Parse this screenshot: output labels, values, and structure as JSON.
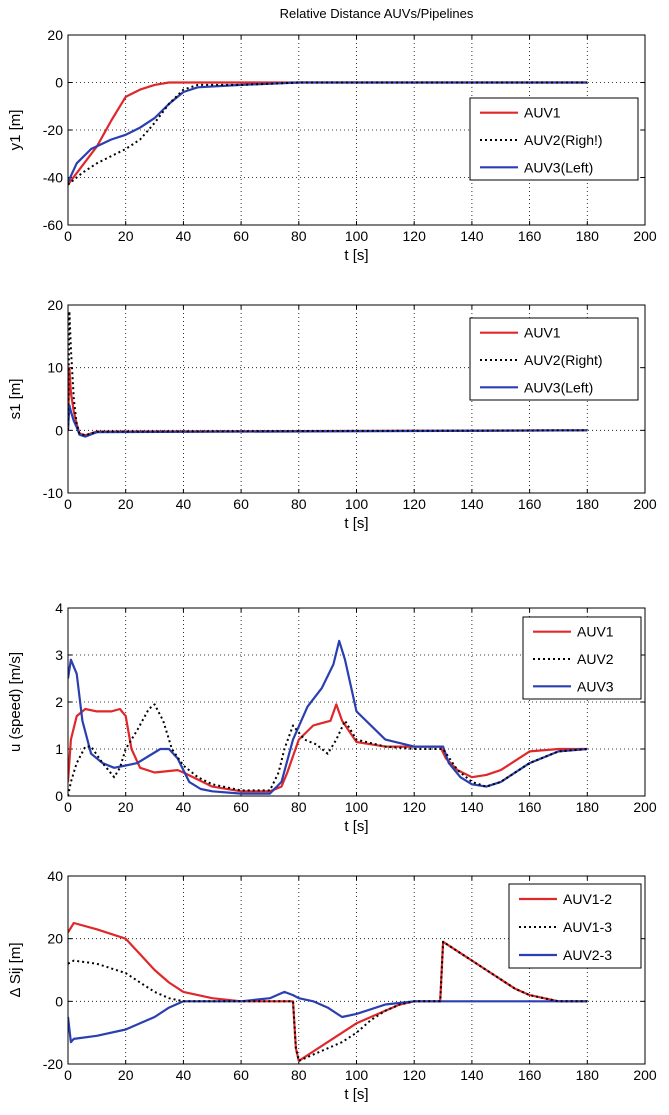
{
  "colors": {
    "red": "#e0282a",
    "black": "#000000",
    "blue": "#2a3fb0",
    "grid": "#000000"
  },
  "chart_data": [
    {
      "type": "line",
      "title": "Relative Distance AUVs/Pipelines",
      "xlabel": "t [s]",
      "ylabel": "y1 [m]",
      "xlim": [
        0,
        200
      ],
      "ylim": [
        -60,
        20
      ],
      "xticks": [
        "0",
        "20",
        "40",
        "60",
        "80",
        "100",
        "120",
        "140",
        "160",
        "180",
        "200"
      ],
      "yticks": [
        "-60",
        "-40",
        "-20",
        "0",
        "20"
      ],
      "grid": true,
      "legend_position": "right",
      "series": [
        {
          "name": "AUV1",
          "style": "red-solid",
          "x": [
            0,
            5,
            10,
            15,
            20,
            25,
            30,
            35,
            40,
            60,
            80,
            180
          ],
          "y": [
            -43,
            -35,
            -27,
            -16,
            -6,
            -3,
            -1,
            0,
            0,
            0,
            0,
            0
          ]
        },
        {
          "name": "AUV2(Righ!)",
          "style": "black-dotted",
          "x": [
            0,
            5,
            10,
            15,
            20,
            25,
            30,
            35,
            40,
            45,
            60,
            80,
            180
          ],
          "y": [
            -43,
            -38,
            -34,
            -31,
            -28,
            -24,
            -17,
            -9,
            -3,
            -1,
            -1,
            0,
            0
          ]
        },
        {
          "name": "AUV3(Left)",
          "style": "blue-solid",
          "x": [
            0,
            3,
            8,
            15,
            20,
            25,
            30,
            35,
            40,
            45,
            60,
            80,
            180
          ],
          "y": [
            -42,
            -34,
            -28,
            -24,
            -22,
            -19,
            -15,
            -9,
            -4,
            -2,
            -1,
            0,
            0
          ]
        }
      ]
    },
    {
      "type": "line",
      "xlabel": "t [s]",
      "ylabel": "s1 [m]",
      "xlim": [
        0,
        200
      ],
      "ylim": [
        -10,
        20
      ],
      "xticks": [
        "0",
        "20",
        "40",
        "60",
        "80",
        "100",
        "120",
        "140",
        "160",
        "180",
        "200"
      ],
      "yticks": [
        "-10",
        "0",
        "10",
        "20"
      ],
      "grid": true,
      "legend_position": "right",
      "series": [
        {
          "name": "AUV1",
          "style": "red-solid",
          "x": [
            0,
            0.5,
            1,
            2,
            3,
            4,
            6,
            10,
            180
          ],
          "y": [
            0,
            10,
            6,
            3,
            1,
            -0.5,
            -0.8,
            -0.2,
            0
          ]
        },
        {
          "name": "AUV2(Right)",
          "style": "black-dotted",
          "x": [
            0,
            0.5,
            1,
            2,
            3,
            4,
            6,
            10,
            180
          ],
          "y": [
            0,
            19,
            13,
            5,
            1,
            -0.5,
            -0.8,
            -0.2,
            0
          ]
        },
        {
          "name": "AUV3(Left)",
          "style": "blue-solid",
          "x": [
            0,
            0.5,
            1,
            2,
            3,
            4,
            6,
            10,
            180
          ],
          "y": [
            0,
            4,
            3,
            1.5,
            0.5,
            -0.7,
            -1,
            -0.3,
            0
          ]
        }
      ]
    },
    {
      "type": "line",
      "xlabel": "t [s]",
      "ylabel": "u (speed) [m/s]",
      "xlim": [
        0,
        200
      ],
      "ylim": [
        0,
        4
      ],
      "xticks": [
        "0",
        "20",
        "40",
        "60",
        "80",
        "100",
        "120",
        "140",
        "160",
        "180",
        "200"
      ],
      "yticks": [
        "0",
        "1",
        "2",
        "3",
        "4"
      ],
      "grid": true,
      "legend_position": "top-right",
      "series": [
        {
          "name": "AUV1",
          "style": "red-solid",
          "x": [
            0,
            1,
            3,
            6,
            10,
            15,
            18,
            20,
            22,
            25,
            30,
            38,
            40,
            45,
            50,
            60,
            70,
            74,
            76,
            80,
            85,
            88,
            91,
            93,
            95,
            100,
            110,
            120,
            129,
            131,
            135,
            140,
            145,
            150,
            160,
            170,
            180
          ],
          "y": [
            0.3,
            1.2,
            1.7,
            1.85,
            1.8,
            1.8,
            1.85,
            1.7,
            1.0,
            0.6,
            0.5,
            0.55,
            0.5,
            0.35,
            0.2,
            0.1,
            0.1,
            0.2,
            0.5,
            1.2,
            1.5,
            1.55,
            1.6,
            1.95,
            1.6,
            1.15,
            1.05,
            1.05,
            1.05,
            0.8,
            0.55,
            0.4,
            0.45,
            0.55,
            0.95,
            1.0,
            1.0
          ]
        },
        {
          "name": "AUV2",
          "style": "black-dotted",
          "x": [
            0,
            1,
            3,
            6,
            8,
            12,
            16,
            18,
            20,
            24,
            28,
            30,
            33,
            36,
            40,
            45,
            50,
            60,
            70,
            73,
            75,
            78,
            82,
            86,
            90,
            93,
            96,
            100,
            110,
            120,
            130,
            135,
            140,
            145,
            150,
            160,
            170,
            180
          ],
          "y": [
            0,
            0.3,
            0.7,
            1.05,
            1.05,
            0.7,
            0.4,
            0.6,
            1.0,
            1.4,
            1.85,
            1.95,
            1.6,
            1.0,
            0.65,
            0.4,
            0.25,
            0.12,
            0.12,
            0.5,
            1.0,
            1.5,
            1.2,
            1.1,
            0.9,
            1.2,
            1.6,
            1.2,
            1.05,
            1.0,
            1.0,
            0.55,
            0.3,
            0.2,
            0.3,
            0.7,
            0.95,
            1.0
          ]
        },
        {
          "name": "AUV3",
          "style": "blue-solid",
          "x": [
            0,
            1,
            3,
            5,
            8,
            12,
            16,
            20,
            24,
            28,
            32,
            35,
            38,
            42,
            46,
            50,
            60,
            70,
            74,
            78,
            83,
            88,
            92,
            94,
            96,
            100,
            110,
            120,
            130,
            132,
            136,
            140,
            145,
            150,
            160,
            170,
            180
          ],
          "y": [
            2.5,
            2.9,
            2.6,
            1.6,
            0.9,
            0.7,
            0.6,
            0.65,
            0.7,
            0.85,
            1.0,
            1.0,
            0.8,
            0.3,
            0.15,
            0.1,
            0.05,
            0.05,
            0.3,
            1.2,
            1.9,
            2.3,
            2.8,
            3.3,
            2.9,
            1.8,
            1.2,
            1.05,
            1.05,
            0.7,
            0.4,
            0.25,
            0.2,
            0.3,
            0.7,
            0.95,
            1.0
          ]
        }
      ]
    },
    {
      "type": "line",
      "xlabel": "t [s]",
      "ylabel": "Δ Sij [m]",
      "xlim": [
        0,
        200
      ],
      "ylim": [
        -20,
        40
      ],
      "xticks": [
        "0",
        "20",
        "40",
        "60",
        "80",
        "100",
        "120",
        "140",
        "160",
        "180",
        "200"
      ],
      "yticks": [
        "-20",
        "0",
        "20",
        "40"
      ],
      "grid": true,
      "legend_position": "top-right",
      "series": [
        {
          "name": "AUV1-2",
          "style": "red-solid",
          "x": [
            0,
            2,
            10,
            20,
            25,
            30,
            35,
            40,
            50,
            60,
            70,
            78,
            79,
            80,
            85,
            90,
            95,
            100,
            105,
            110,
            115,
            120,
            128,
            129,
            130,
            135,
            140,
            145,
            150,
            155,
            160,
            165,
            170,
            180
          ],
          "y": [
            22,
            25,
            23,
            20,
            15,
            10,
            6,
            3,
            1,
            0,
            0,
            0,
            -15,
            -19,
            -16,
            -13,
            -10,
            -7,
            -5,
            -3,
            -1,
            0,
            0,
            0,
            19,
            16,
            13,
            10,
            7,
            4,
            2,
            1,
            0,
            0
          ]
        },
        {
          "name": "AUV1-3",
          "style": "black-dotted",
          "x": [
            0,
            2,
            10,
            20,
            25,
            30,
            35,
            40,
            50,
            60,
            70,
            78,
            79,
            80,
            85,
            90,
            95,
            100,
            105,
            110,
            115,
            120,
            128,
            129,
            130,
            135,
            140,
            145,
            150,
            155,
            160,
            165,
            170,
            180
          ],
          "y": [
            12,
            13,
            12,
            9,
            6,
            3,
            1,
            0,
            0,
            0,
            0,
            0,
            -15,
            -19,
            -17,
            -15,
            -13,
            -10,
            -6,
            -3,
            -1,
            0,
            0,
            0,
            19,
            16,
            13,
            10,
            7,
            4,
            2,
            1,
            0,
            0
          ]
        },
        {
          "name": "AUV2-3",
          "style": "blue-solid",
          "x": [
            0,
            1,
            2,
            10,
            20,
            25,
            30,
            35,
            40,
            50,
            60,
            70,
            75,
            78,
            80,
            85,
            90,
            95,
            100,
            110,
            120,
            130,
            140,
            150,
            160,
            170,
            180
          ],
          "y": [
            -5,
            -13,
            -12,
            -11,
            -9,
            -7,
            -5,
            -2,
            0,
            0,
            0,
            1,
            3,
            2,
            1,
            0,
            -2,
            -5,
            -4,
            -1,
            0,
            0,
            0,
            0,
            0,
            0,
            0
          ]
        }
      ]
    }
  ]
}
